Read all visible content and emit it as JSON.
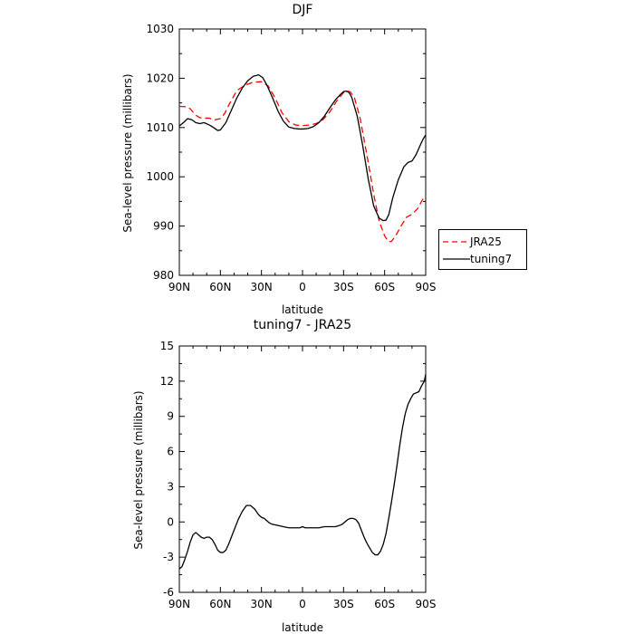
{
  "chart_data": [
    {
      "type": "line",
      "title": "DJF",
      "xlabel": "latitude",
      "ylabel": "Sea-level pressure (millibars)",
      "x_tick_labels": [
        "90N",
        "60N",
        "30N",
        "0",
        "30S",
        "60S",
        "90S"
      ],
      "x_tick_values": [
        90,
        60,
        30,
        0,
        -30,
        -60,
        -90
      ],
      "y_tick_labels": [
        "980",
        "990",
        "1000",
        "1010",
        "1020",
        "1030"
      ],
      "ylim": [
        980,
        1030
      ],
      "xlim": [
        90,
        -90
      ],
      "legend_position": "right",
      "series": [
        {
          "name": "JRA25",
          "color": "#ff0000",
          "style": "dashed",
          "x": [
            90,
            85,
            82,
            78,
            75,
            72,
            68,
            65,
            60,
            57,
            53,
            48,
            42,
            36,
            30,
            25,
            20,
            15,
            10,
            5,
            0,
            -5,
            -10,
            -15,
            -20,
            -25,
            -30,
            -33,
            -35,
            -38,
            -42,
            -47,
            -52,
            -56,
            -60,
            -63,
            -65,
            -68,
            -72,
            -76,
            -80,
            -84,
            -88,
            -90
          ],
          "values": [
            1014.3,
            1014.2,
            1013.8,
            1012.5,
            1012,
            1011.9,
            1011.9,
            1011.5,
            1011.8,
            1012.8,
            1015,
            1017.5,
            1018.6,
            1019.2,
            1019.3,
            1018.4,
            1016,
            1013,
            1011.2,
            1010.5,
            1010.4,
            1010.5,
            1010.8,
            1011.6,
            1013.2,
            1015.4,
            1017.1,
            1017.4,
            1017.2,
            1016,
            1012,
            1004.5,
            996.5,
            991,
            988,
            986.8,
            986.9,
            988,
            990,
            991.8,
            992.4,
            993.5,
            995.5,
            996.2
          ]
        },
        {
          "name": "tuning7",
          "color": "#000000",
          "style": "solid",
          "x": [
            90,
            87,
            84,
            81,
            78,
            75,
            72,
            68,
            65,
            62,
            60,
            56,
            52,
            48,
            44,
            40,
            36,
            32,
            29,
            26,
            22,
            18,
            14,
            10,
            6,
            2,
            0,
            -4,
            -8,
            -12,
            -16,
            -20,
            -24,
            -28,
            -30,
            -32,
            -34,
            -36,
            -40,
            -44,
            -48,
            -52,
            -56,
            -59,
            -61,
            -63,
            -66,
            -70,
            -74,
            -77,
            -80,
            -83,
            -86,
            -88,
            -90
          ],
          "values": [
            1010.3,
            1011,
            1011.8,
            1011.6,
            1011,
            1010.8,
            1011,
            1010.5,
            1010,
            1009.4,
            1009.5,
            1011,
            1013.5,
            1016,
            1018,
            1019.5,
            1020.4,
            1020.7,
            1020.1,
            1018.6,
            1016.1,
            1013.4,
            1011.3,
            1010.1,
            1009.8,
            1009.7,
            1009.7,
            1009.8,
            1010.2,
            1011,
            1012.3,
            1014,
            1015.6,
            1016.8,
            1017.3,
            1017.4,
            1017.1,
            1016.1,
            1012.3,
            1006.3,
            999.6,
            994.1,
            991.6,
            991.1,
            991.2,
            992.3,
            995.8,
            999.4,
            1002,
            1002.9,
            1003.2,
            1004.5,
            1006.4,
            1007.6,
            1008.5
          ]
        }
      ]
    },
    {
      "type": "line",
      "title": "tuning7 - JRA25",
      "xlabel": "latitude",
      "ylabel": "Sea-level pressure (millibars)",
      "x_tick_labels": [
        "90N",
        "60N",
        "30N",
        "0",
        "30S",
        "60S",
        "90S"
      ],
      "x_tick_values": [
        90,
        60,
        30,
        0,
        -30,
        -60,
        -90
      ],
      "y_tick_labels": [
        "-6",
        "-3",
        "0",
        "3",
        "6",
        "9",
        "12",
        "15"
      ],
      "ylim": [
        -6,
        15
      ],
      "xlim": [
        90,
        -90
      ],
      "series": [
        {
          "color": "#000000",
          "style": "solid",
          "x": [
            90,
            88,
            86,
            84,
            82,
            80,
            78,
            76,
            74,
            72,
            70,
            68,
            66,
            64,
            62,
            60,
            58,
            56,
            54,
            52,
            50,
            47,
            44,
            41,
            38,
            35,
            32,
            30,
            28,
            26,
            24,
            22,
            18,
            14,
            10,
            6,
            4,
            2,
            0,
            -2,
            -4,
            -8,
            -12,
            -16,
            -20,
            -24,
            -27,
            -29,
            -31,
            -33,
            -35,
            -37,
            -39,
            -41,
            -43,
            -45,
            -47,
            -49,
            -51,
            -53,
            -55,
            -57,
            -59,
            -61,
            -63,
            -65,
            -67,
            -69,
            -71,
            -73,
            -75,
            -77,
            -79,
            -81,
            -83,
            -85,
            -87,
            -89,
            -90
          ],
          "values": [
            -4.0,
            -3.8,
            -3.2,
            -2.5,
            -1.7,
            -1.1,
            -0.9,
            -1.1,
            -1.3,
            -1.4,
            -1.3,
            -1.3,
            -1.5,
            -1.9,
            -2.4,
            -2.6,
            -2.6,
            -2.4,
            -1.9,
            -1.3,
            -0.7,
            0.2,
            0.9,
            1.4,
            1.4,
            1.1,
            0.6,
            0.4,
            0.3,
            0.1,
            -0.1,
            -0.2,
            -0.3,
            -0.4,
            -0.5,
            -0.5,
            -0.5,
            -0.5,
            -0.4,
            -0.5,
            -0.5,
            -0.5,
            -0.5,
            -0.4,
            -0.4,
            -0.4,
            -0.3,
            -0.2,
            0.0,
            0.2,
            0.3,
            0.3,
            0.2,
            -0.1,
            -0.7,
            -1.3,
            -1.8,
            -2.2,
            -2.6,
            -2.8,
            -2.8,
            -2.5,
            -1.9,
            -1.0,
            0.3,
            1.7,
            3.2,
            4.8,
            6.5,
            8.0,
            9.2,
            10.0,
            10.5,
            10.9,
            11.0,
            11.1,
            11.6,
            12.0,
            12.6
          ]
        }
      ]
    }
  ]
}
